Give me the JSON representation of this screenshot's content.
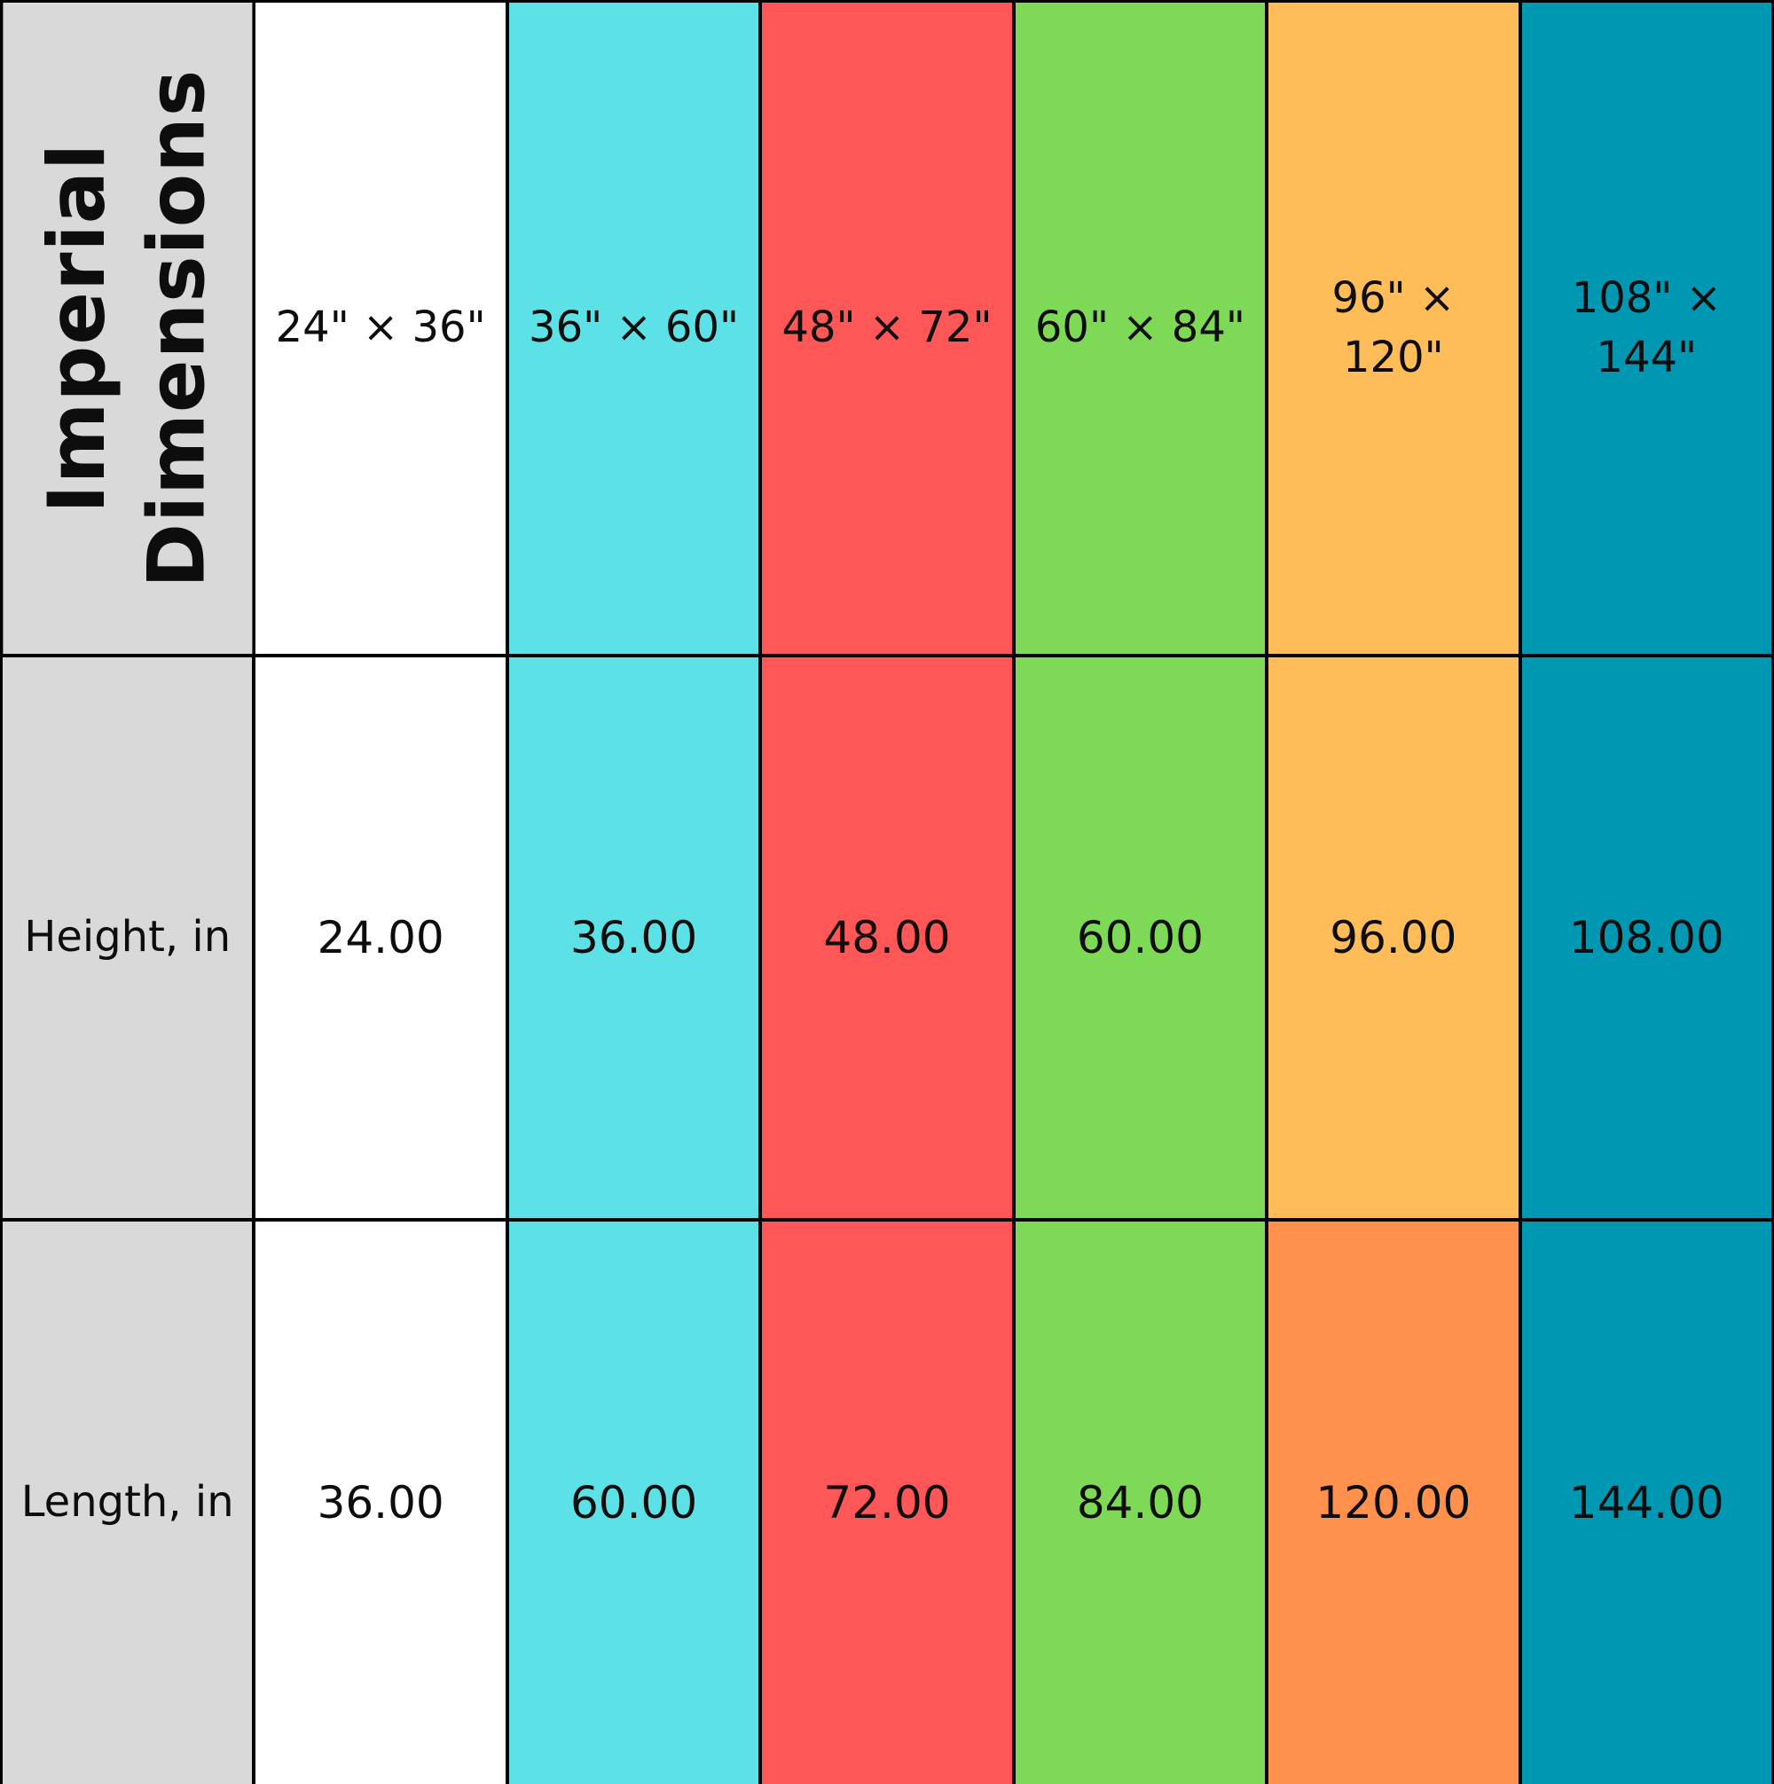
{
  "chart_data": {
    "type": "table",
    "header": "Imperial Dimensions",
    "columns": [
      "24\" × 36\"",
      "36\" × 60\"",
      "48\" × 72\"",
      "60\" × 84\"",
      "96\" × 120\"",
      "108\" × 144\""
    ],
    "rows": [
      {
        "label": "Height, in",
        "values": [
          "24.00",
          "36.00",
          "48.00",
          "60.00",
          "96.00",
          "108.00"
        ]
      },
      {
        "label": "Length, in",
        "values": [
          "36.00",
          "60.00",
          "72.00",
          "84.00",
          "120.00",
          "144.00"
        ]
      }
    ],
    "colors": {
      "label_column": "#d9d9d9",
      "columns": [
        "#ffffff",
        "#5ce1e6",
        "#ff5757",
        "#7ed957",
        "#ffbd59",
        "#0097b2"
      ],
      "length_row_override": {
        "4": "#ff914d"
      }
    }
  }
}
